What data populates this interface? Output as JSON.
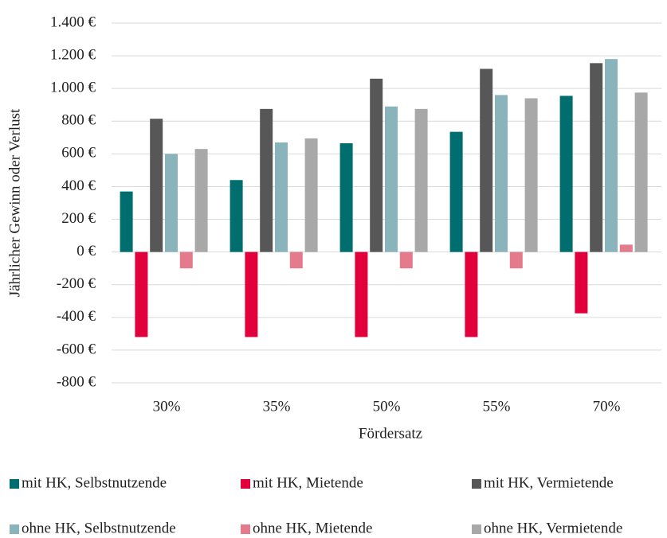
{
  "chart_data": {
    "type": "bar",
    "y_label": "Jährlicher Gewinn oder Verlust",
    "x_label": "Fördersatz",
    "categories": [
      "30%",
      "35%",
      "50%",
      "55%",
      "70%"
    ],
    "series": [
      {
        "name": "mit HK, Selbstnutzende",
        "color": "#006e6e",
        "values": [
          370,
          440,
          665,
          735,
          955
        ]
      },
      {
        "name": "mit HK, Mietende",
        "color": "#e2003c",
        "values": [
          -520,
          -520,
          -520,
          -520,
          -375
        ]
      },
      {
        "name": "mit HK, Vermietende",
        "color": "#575757",
        "values": [
          815,
          875,
          1060,
          1120,
          1155
        ]
      },
      {
        "name": "ohne HK, Selbstnutzende",
        "color": "#8ab4bb",
        "values": [
          600,
          670,
          890,
          960,
          1180
        ]
      },
      {
        "name": "ohne HK, Mietende",
        "color": "#e57a8d",
        "values": [
          -100,
          -100,
          -100,
          -100,
          45
        ]
      },
      {
        "name": "ohne HK, Vermietende",
        "color": "#a8a8a8",
        "values": [
          630,
          695,
          875,
          940,
          975
        ]
      }
    ],
    "ylim": [
      -800,
      1400
    ],
    "yticks": [
      {
        "value": -800,
        "label": "-800 €"
      },
      {
        "value": -600,
        "label": "-600 €"
      },
      {
        "value": -400,
        "label": "-400 €"
      },
      {
        "value": -200,
        "label": "-200 €"
      },
      {
        "value": 0,
        "label": "0 €"
      },
      {
        "value": 200,
        "label": "200 €"
      },
      {
        "value": 400,
        "label": "400 €"
      },
      {
        "value": 600,
        "label": "600 €"
      },
      {
        "value": 800,
        "label": "800 €"
      },
      {
        "value": 1000,
        "label": "1.000 €"
      },
      {
        "value": 1200,
        "label": "1.200 €"
      },
      {
        "value": 1400,
        "label": "1.400 €"
      }
    ],
    "grid": true
  }
}
